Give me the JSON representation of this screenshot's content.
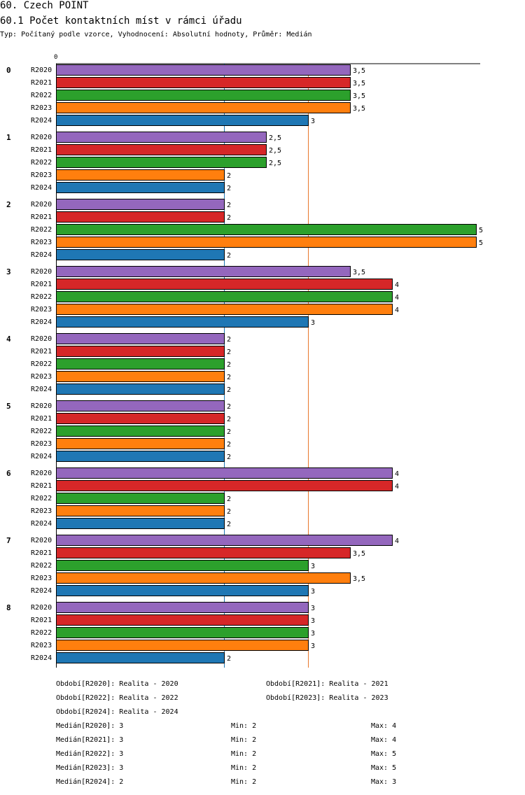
{
  "header": {
    "title": "60. Czech POINT",
    "subtitle": "60.1 Počet kontaktních míst v rámci úřadu",
    "meta": "Typ: Počítaný podle vzorce, Vyhodnocení: Absolutní hodnoty, Průměr: Medián"
  },
  "colors": {
    "R2020": "#9467bd",
    "R2021": "#d62728",
    "R2022": "#2ca02c",
    "R2023": "#ff7f0e",
    "R2024": "#1f77b4",
    "median_line": "#e8772c",
    "grid_line": "#1f77b4"
  },
  "chart_data": {
    "type": "bar",
    "orientation": "horizontal",
    "x_axis_tick": "0",
    "xlim": [
      0,
      5
    ],
    "reference_lines": [
      {
        "name": "grid",
        "value": 2
      },
      {
        "name": "median",
        "value": 3
      }
    ],
    "series_names": [
      "R2020",
      "R2021",
      "R2022",
      "R2023",
      "R2024"
    ],
    "groups": [
      {
        "label": "0",
        "values": [
          3.5,
          3.5,
          3.5,
          3.5,
          3
        ],
        "labels": [
          "3,5",
          "3,5",
          "3,5",
          "3,5",
          "3"
        ]
      },
      {
        "label": "1",
        "values": [
          2.5,
          2.5,
          2.5,
          2,
          2
        ],
        "labels": [
          "2,5",
          "2,5",
          "2,5",
          "2",
          "2"
        ]
      },
      {
        "label": "2",
        "values": [
          2,
          2,
          5,
          5,
          2
        ],
        "labels": [
          "2",
          "2",
          "5",
          "5",
          "2"
        ]
      },
      {
        "label": "3",
        "values": [
          3.5,
          4,
          4,
          4,
          3
        ],
        "labels": [
          "3,5",
          "4",
          "4",
          "4",
          "3"
        ]
      },
      {
        "label": "4",
        "values": [
          2,
          2,
          2,
          2,
          2
        ],
        "labels": [
          "2",
          "2",
          "2",
          "2",
          "2"
        ]
      },
      {
        "label": "5",
        "values": [
          2,
          2,
          2,
          2,
          2
        ],
        "labels": [
          "2",
          "2",
          "2",
          "2",
          "2"
        ]
      },
      {
        "label": "6",
        "values": [
          4,
          4,
          2,
          2,
          2
        ],
        "labels": [
          "4",
          "4",
          "2",
          "2",
          "2"
        ]
      },
      {
        "label": "7",
        "values": [
          4,
          3.5,
          3,
          3.5,
          3
        ],
        "labels": [
          "4",
          "3,5",
          "3",
          "3,5",
          "3"
        ]
      },
      {
        "label": "8",
        "values": [
          3,
          3,
          3,
          3,
          2
        ],
        "labels": [
          "3",
          "3",
          "3",
          "3",
          "2"
        ]
      }
    ]
  },
  "legend": {
    "periods": [
      "Období[R2020]: Realita - 2020",
      "Období[R2021]: Realita - 2021",
      "Období[R2022]: Realita - 2022",
      "Období[R2023]: Realita - 2023",
      "Období[R2024]: Realita - 2024"
    ],
    "stats": [
      {
        "median": "Medián[R2020]: 3",
        "min": "Min: 2",
        "max": "Max: 4"
      },
      {
        "median": "Medián[R2021]: 3",
        "min": "Min: 2",
        "max": "Max: 4"
      },
      {
        "median": "Medián[R2022]: 3",
        "min": "Min: 2",
        "max": "Max: 5"
      },
      {
        "median": "Medián[R2023]: 3",
        "min": "Min: 2",
        "max": "Max: 5"
      },
      {
        "median": "Medián[R2024]: 2",
        "min": "Min: 2",
        "max": "Max: 3"
      }
    ]
  }
}
